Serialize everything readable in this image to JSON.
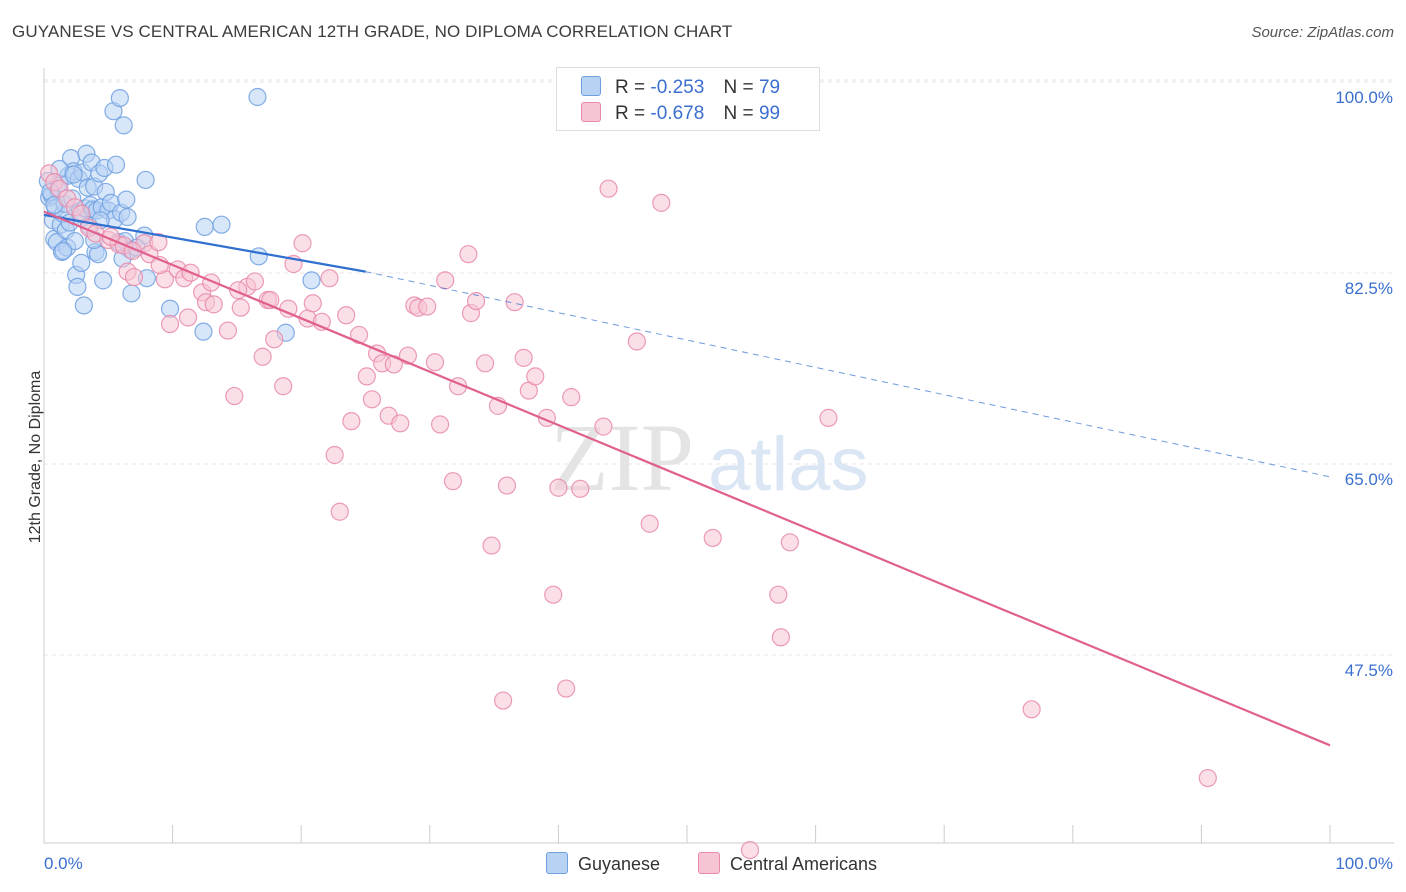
{
  "title": "GUYANESE VS CENTRAL AMERICAN 12TH GRADE, NO DIPLOMA CORRELATION CHART",
  "source": "Source: ZipAtlas.com",
  "watermark": {
    "zip": "ZIP",
    "atlas": "atlas"
  },
  "legend": {
    "r_label": "R =",
    "n_label": "N =",
    "rows": [
      {
        "r": "-0.253",
        "n": "79",
        "color": "#6fa0e0",
        "fill": "#b8d2f4"
      },
      {
        "r": "-0.678",
        "n": "99",
        "color": "#e88aaa",
        "fill": "#f7c4d4"
      }
    ]
  },
  "bottom_legend": [
    {
      "label": "Guyanese",
      "color": "#6fa0e0",
      "fill": "#b8d2f4"
    },
    {
      "label": "Central Americans",
      "color": "#e88aaa",
      "fill": "#f7c4d4"
    }
  ],
  "chart_data": {
    "type": "scatter",
    "title": "GUYANESE VS CENTRAL AMERICAN 12TH GRADE, NO DIPLOMA CORRELATION CHART",
    "xlabel": "",
    "ylabel": "12th Grade, No Diploma",
    "xlim": [
      0,
      100
    ],
    "ylim": [
      30,
      101
    ],
    "x_tick_labels": [
      "0.0%",
      "100.0%"
    ],
    "y_ticks": [
      100,
      82.5,
      65,
      47.5
    ],
    "y_tick_labels": [
      "100.0%",
      "82.5%",
      "65.0%",
      "47.5%"
    ],
    "grid": true,
    "legend_placement": "top-center",
    "series": [
      {
        "name": "Guyanese",
        "color": "#6fa0e0",
        "fill": "#b8d2f4",
        "trend": {
          "x0": 0,
          "y0": 89.2,
          "x1": 25,
          "y1": 84.0,
          "dash_to_x": 100,
          "dash_to_y": 65.2,
          "color": "#2f6fd0"
        },
        "points": [
          [
            0.3,
            92.3
          ],
          [
            0.4,
            90.8
          ],
          [
            0.6,
            91.0
          ],
          [
            0.7,
            88.7
          ],
          [
            0.8,
            87.0
          ],
          [
            0.9,
            89.8
          ],
          [
            1.0,
            86.7
          ],
          [
            1.1,
            91.5
          ],
          [
            1.2,
            92.1
          ],
          [
            1.3,
            88.3
          ],
          [
            1.4,
            85.8
          ],
          [
            1.5,
            89.3
          ],
          [
            1.6,
            90.2
          ],
          [
            1.7,
            87.8
          ],
          [
            1.8,
            86.2
          ],
          [
            1.9,
            92.8
          ],
          [
            2.0,
            88.5
          ],
          [
            2.1,
            94.4
          ],
          [
            2.2,
            90.7
          ],
          [
            2.3,
            93.2
          ],
          [
            2.4,
            86.8
          ],
          [
            2.5,
            83.7
          ],
          [
            2.6,
            82.6
          ],
          [
            2.7,
            92.5
          ],
          [
            2.8,
            89.5
          ],
          [
            2.9,
            88.9
          ],
          [
            3.0,
            93.1
          ],
          [
            3.1,
            80.9
          ],
          [
            3.2,
            89.8
          ],
          [
            3.3,
            94.8
          ],
          [
            3.4,
            91.7
          ],
          [
            3.5,
            88.2
          ],
          [
            3.6,
            90.1
          ],
          [
            3.7,
            94.0
          ],
          [
            3.8,
            89.7
          ],
          [
            3.9,
            91.8
          ],
          [
            4.0,
            85.8
          ],
          [
            4.1,
            89.6
          ],
          [
            4.2,
            85.6
          ],
          [
            4.3,
            93.0
          ],
          [
            4.5,
            89.9
          ],
          [
            4.6,
            83.2
          ],
          [
            4.7,
            93.5
          ],
          [
            4.8,
            91.3
          ],
          [
            5.0,
            89.6
          ],
          [
            5.2,
            90.3
          ],
          [
            5.4,
            98.7
          ],
          [
            5.5,
            88.8
          ],
          [
            5.6,
            93.8
          ],
          [
            5.8,
            86.7
          ],
          [
            5.9,
            99.9
          ],
          [
            6.0,
            89.4
          ],
          [
            6.2,
            97.4
          ],
          [
            6.3,
            86.8
          ],
          [
            6.4,
            90.6
          ],
          [
            6.5,
            89.0
          ],
          [
            6.7,
            86.0
          ],
          [
            6.8,
            82.0
          ],
          [
            7.8,
            87.3
          ],
          [
            7.9,
            92.4
          ],
          [
            8.0,
            83.4
          ],
          [
            9.8,
            80.6
          ],
          [
            12.4,
            78.5
          ],
          [
            12.5,
            88.1
          ],
          [
            13.8,
            88.3
          ],
          [
            16.6,
            100.0
          ],
          [
            16.7,
            85.4
          ],
          [
            18.8,
            78.4
          ],
          [
            20.8,
            83.2
          ],
          [
            1.5,
            85.9
          ],
          [
            2.9,
            84.8
          ],
          [
            3.9,
            86.9
          ],
          [
            0.5,
            91.3
          ],
          [
            1.2,
            93.4
          ],
          [
            2.3,
            92.9
          ],
          [
            4.4,
            88.7
          ],
          [
            6.1,
            85.2
          ],
          [
            7.2,
            86.2
          ],
          [
            0.8,
            90.1
          ]
        ]
      },
      {
        "name": "Central Americans",
        "color": "#e88aaa",
        "fill": "#f7c4d4",
        "trend": {
          "x0": 0,
          "y0": 89.5,
          "x1": 100,
          "y1": 40.6,
          "color": "#e0608e"
        },
        "points": [
          [
            0.4,
            93.0
          ],
          [
            0.8,
            92.2
          ],
          [
            1.2,
            91.6
          ],
          [
            1.8,
            90.7
          ],
          [
            2.4,
            89.9
          ],
          [
            2.9,
            89.3
          ],
          [
            3.5,
            88.0
          ],
          [
            4.0,
            87.5
          ],
          [
            5.0,
            86.9
          ],
          [
            5.8,
            86.5
          ],
          [
            6.2,
            86.4
          ],
          [
            6.5,
            84.0
          ],
          [
            7.0,
            83.5
          ],
          [
            7.8,
            86.6
          ],
          [
            8.2,
            85.6
          ],
          [
            8.9,
            86.7
          ],
          [
            9.4,
            83.3
          ],
          [
            9.8,
            79.2
          ],
          [
            10.4,
            84.2
          ],
          [
            10.9,
            83.4
          ],
          [
            11.2,
            79.8
          ],
          [
            12.3,
            82.1
          ],
          [
            12.6,
            81.2
          ],
          [
            13.2,
            81.0
          ],
          [
            14.3,
            78.6
          ],
          [
            14.8,
            72.6
          ],
          [
            15.3,
            80.7
          ],
          [
            15.8,
            82.6
          ],
          [
            16.4,
            83.1
          ],
          [
            17.0,
            76.2
          ],
          [
            17.4,
            81.4
          ],
          [
            17.9,
            77.8
          ],
          [
            18.6,
            73.5
          ],
          [
            19.0,
            80.6
          ],
          [
            19.4,
            84.7
          ],
          [
            20.1,
            86.6
          ],
          [
            20.5,
            79.7
          ],
          [
            20.9,
            81.1
          ],
          [
            21.6,
            79.4
          ],
          [
            22.2,
            83.4
          ],
          [
            22.6,
            67.2
          ],
          [
            23.0,
            62.0
          ],
          [
            23.5,
            80.0
          ],
          [
            23.9,
            70.3
          ],
          [
            24.5,
            78.2
          ],
          [
            25.1,
            74.4
          ],
          [
            25.5,
            72.3
          ],
          [
            25.9,
            76.5
          ],
          [
            26.3,
            75.6
          ],
          [
            26.8,
            70.8
          ],
          [
            27.2,
            75.5
          ],
          [
            27.7,
            70.1
          ],
          [
            28.3,
            76.3
          ],
          [
            28.8,
            80.9
          ],
          [
            29.1,
            80.7
          ],
          [
            29.8,
            80.8
          ],
          [
            30.4,
            75.7
          ],
          [
            30.8,
            70.0
          ],
          [
            31.2,
            83.2
          ],
          [
            31.8,
            64.8
          ],
          [
            32.2,
            73.5
          ],
          [
            33.0,
            85.6
          ],
          [
            33.2,
            80.2
          ],
          [
            33.6,
            81.3
          ],
          [
            34.3,
            75.6
          ],
          [
            34.8,
            58.9
          ],
          [
            35.3,
            71.7
          ],
          [
            35.7,
            44.7
          ],
          [
            36.0,
            64.4
          ],
          [
            36.6,
            81.2
          ],
          [
            37.3,
            76.1
          ],
          [
            37.7,
            73.1
          ],
          [
            38.2,
            74.4
          ],
          [
            39.1,
            70.6
          ],
          [
            39.6,
            54.4
          ],
          [
            40.0,
            64.2
          ],
          [
            40.6,
            45.8
          ],
          [
            41.0,
            72.5
          ],
          [
            41.7,
            64.1
          ],
          [
            43.5,
            69.8
          ],
          [
            43.9,
            91.6
          ],
          [
            46.1,
            77.6
          ],
          [
            47.1,
            60.9
          ],
          [
            48.0,
            90.3
          ],
          [
            52.0,
            59.6
          ],
          [
            54.9,
            31.0
          ],
          [
            57.1,
            54.4
          ],
          [
            57.3,
            50.5
          ],
          [
            58.0,
            59.2
          ],
          [
            61.0,
            70.6
          ],
          [
            76.8,
            43.9
          ],
          [
            90.5,
            37.6
          ],
          [
            5.2,
            87.2
          ],
          [
            6.9,
            85.9
          ],
          [
            9.0,
            84.6
          ],
          [
            11.4,
            83.9
          ],
          [
            13.0,
            83.0
          ],
          [
            15.1,
            82.3
          ],
          [
            17.6,
            81.4
          ]
        ]
      }
    ]
  }
}
